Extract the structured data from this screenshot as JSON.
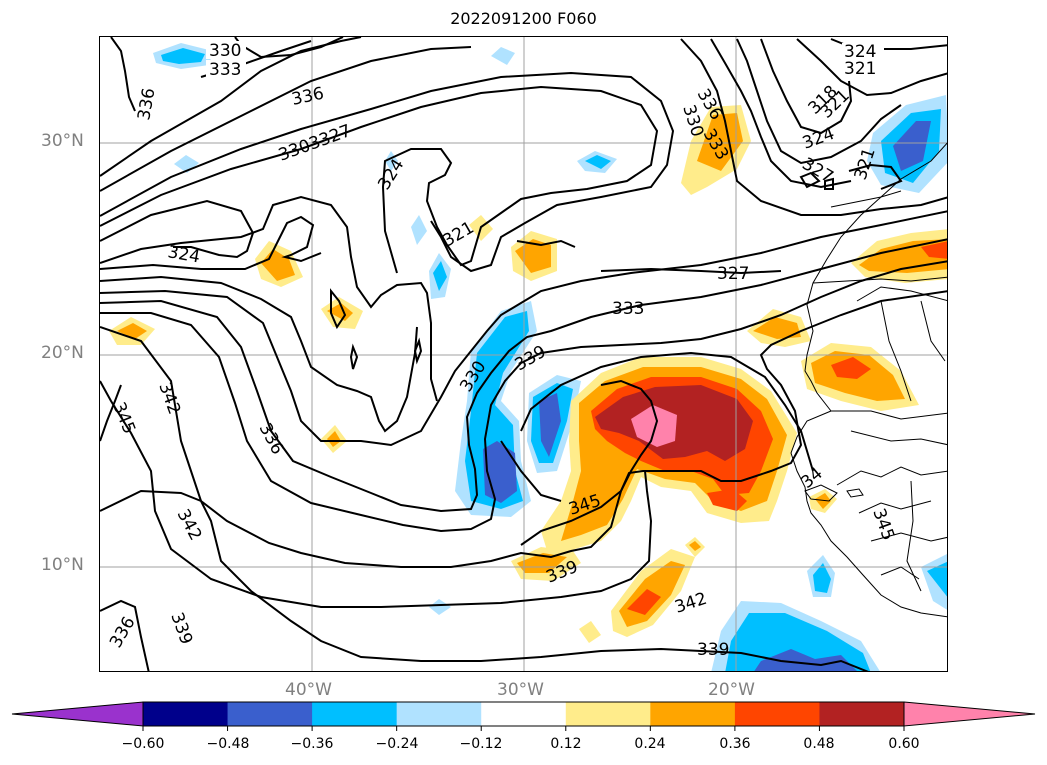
{
  "title": "2022091200 F060",
  "lat_labels": [
    "30°N",
    "20°N",
    "10°N"
  ],
  "lon_labels": [
    "40°W",
    "30°W",
    "20°W"
  ],
  "contour_labels": {
    "l330a": "330",
    "l333a": "333",
    "l324a": "324",
    "l321a": "321",
    "l336a": "336",
    "l336b": "336",
    "l336c": "336",
    "l330b": "330",
    "l333b": "333",
    "l318": "318",
    "l321b": "321",
    "l324b": "324",
    "l327a": "327",
    "l3303327": "3303327",
    "l324c": "324",
    "l321c": "321",
    "l324d": "324",
    "l321d": "321",
    "l327b": "327",
    "l333c": "333",
    "l339a": "339",
    "l330c": "330",
    "l342a": "342",
    "l345a": "345",
    "l336d": "336",
    "l342b": "342",
    "l345b": "345",
    "l339b": "339",
    "l342c": "342",
    "l339c": "339",
    "l336e": "336",
    "l339d": "339",
    "l345c": "345",
    "l34": "34"
  },
  "colorbar": {
    "colors": [
      "#9a32cd",
      "#00008b",
      "#3a5fcd",
      "#00bfff",
      "#b0e2ff",
      "#ffffff",
      "#ffec8b",
      "#ffa500",
      "#ff4500",
      "#b22222",
      "#ff82ab"
    ],
    "ticks": [
      "−0.60",
      "−0.48",
      "−0.36",
      "−0.24",
      "−0.12",
      "0.12",
      "0.24",
      "0.36",
      "0.48",
      "0.60"
    ]
  }
}
